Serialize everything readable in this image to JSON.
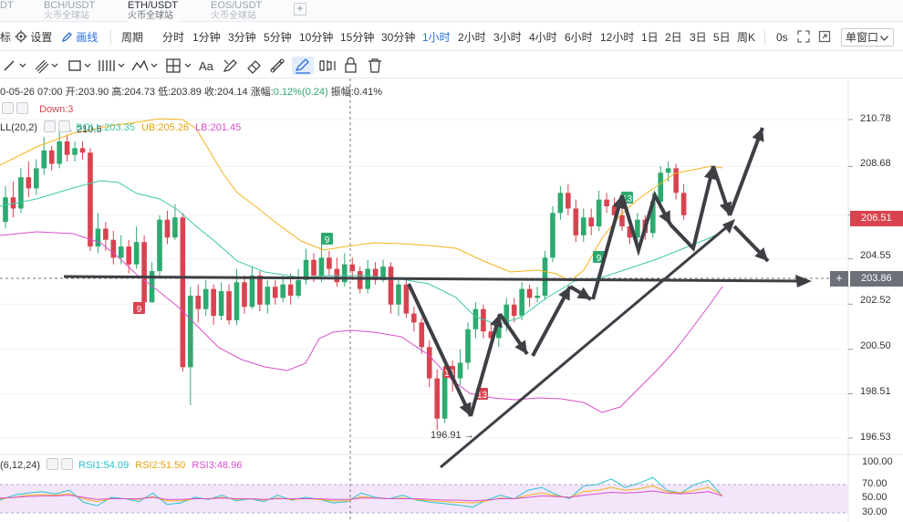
{
  "tabs": [
    {
      "pair": "DT",
      "exchange": ""
    },
    {
      "pair": "BCH/USDT",
      "exchange": "火币全球站"
    },
    {
      "pair": "ETH/USDT",
      "exchange": "火币全球站"
    },
    {
      "pair": "EOS/USDT",
      "exchange": "火币全球站"
    }
  ],
  "tab_add_label": "+",
  "toolbar": {
    "indicator_label": "标",
    "settings_label": "设置",
    "draw_label": "画线",
    "period_label": "周期",
    "periods": [
      "分时",
      "1分钟",
      "3分钟",
      "5分钟",
      "10分钟",
      "15分钟",
      "30分钟",
      "1小时",
      "2小时",
      "3小时",
      "4小时",
      "6小时",
      "12小时",
      "1日",
      "2日",
      "3日",
      "5日",
      "周K"
    ],
    "active_period": "1小时",
    "countdown": "0s",
    "window_mode": "单窗口"
  },
  "drawing_tools": [
    "line-tool-icon",
    "multi-line-tool-icon",
    "rectangle-tool-icon",
    "fib-tool-icon",
    "pattern-tool-icon",
    "measure-tool-icon",
    "text-tool-icon",
    "brush-tool-icon",
    "eraser-tool-icon",
    "magnet-tool-icon",
    "lock-tool-icon",
    "delete-tool-icon"
  ],
  "ohlc": {
    "date": "0-05-26 07:00",
    "open_label": "开:",
    "open": "203.90",
    "high_label": "高:",
    "high": "204.73",
    "low_label": "低:",
    "low": "203.89",
    "close_label": "收:",
    "close": "204.14",
    "change_label": "涨幅:",
    "change": "0.12%(0.24)",
    "amplitude_label": "振幅:",
    "amplitude": "0.41%"
  },
  "td_indicator": {
    "down_label": "Down:3"
  },
  "boll": {
    "name": "LL(20,2)",
    "mid_label": "BOLL:203.35",
    "ub_label": "UB:205.26",
    "lb_label": "LB:201.45"
  },
  "rsi": {
    "name": "(6,12,24)",
    "rsi1": "RSI1:54.09",
    "rsi2": "RSI2:51.50",
    "rsi3": "RSI3:48.96"
  },
  "price_axis": [
    "210.78",
    "208.68",
    "206.51",
    "204.55",
    "203.86",
    "202.52",
    "200.50",
    "198.51",
    "196.53"
  ],
  "rsi_axis": [
    "100.00",
    "70.00",
    "50.00",
    "30.00"
  ],
  "current_price": "206.51",
  "crosshair_price": "203.86",
  "crosshair_add": "+",
  "annotations": {
    "high_marker": "210.6",
    "low_marker": "196.91",
    "td_counts": [
      "9",
      "9",
      "9",
      "13",
      "13",
      "13",
      "13"
    ]
  },
  "colors": {
    "up": "#2daa6f",
    "down": "#d9434f",
    "boll_mid": "#3ec8a8",
    "boll_ub": "#f5b21b",
    "boll_lb": "#d84fcd",
    "rsi1": "#27c2cf",
    "rsi2": "#f5b21b",
    "rsi3": "#d84fcd",
    "active": "#2a6fdb",
    "drawing": "#3d3f45"
  }
}
